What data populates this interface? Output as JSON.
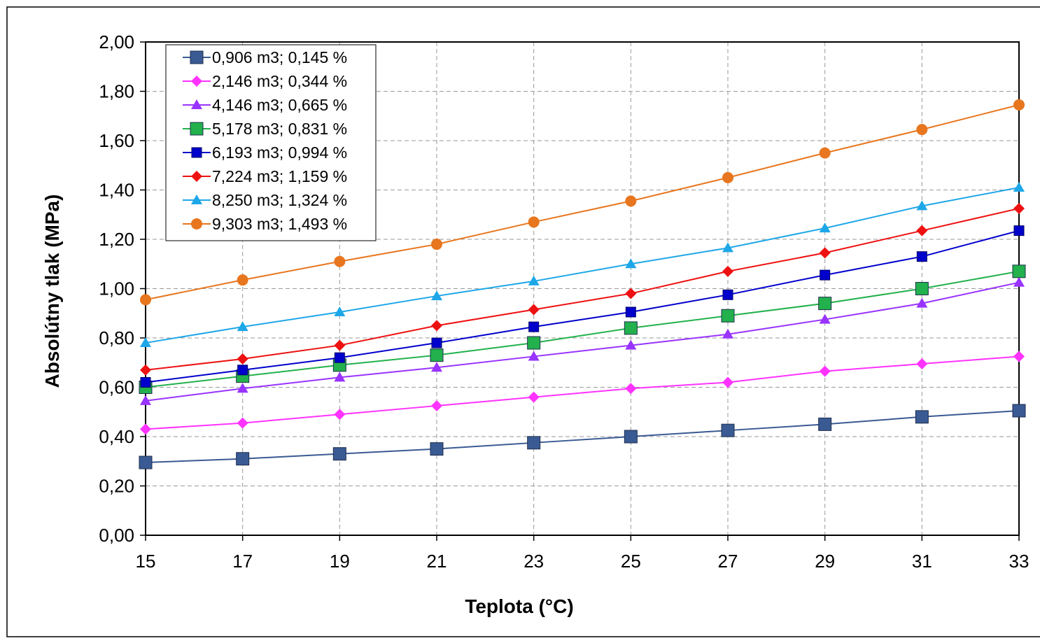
{
  "chart_data": {
    "type": "line",
    "title": "",
    "xlabel": "Teplota (°C)",
    "ylabel": "Absolútny tlak (MPa)",
    "x": [
      15,
      17,
      19,
      21,
      23,
      25,
      27,
      29,
      31,
      33
    ],
    "xlim": [
      15,
      33
    ],
    "ylim": [
      0,
      2
    ],
    "x_ticks": [
      "15",
      "17",
      "19",
      "21",
      "23",
      "25",
      "27",
      "29",
      "31",
      "33"
    ],
    "y_ticks": [
      "0,00",
      "0,20",
      "0,40",
      "0,60",
      "0,80",
      "1,00",
      "1,20",
      "1,40",
      "1,60",
      "1,80",
      "2,00"
    ],
    "grid": true,
    "legend_position": "top-left",
    "series": [
      {
        "name": "0,906 m3; 0,145 %",
        "color": "#3a5a93",
        "marker": "square-large",
        "values": [
          0.295,
          0.31,
          0.33,
          0.35,
          0.375,
          0.4,
          0.425,
          0.45,
          0.48,
          0.505
        ]
      },
      {
        "name": "2,146 m3; 0,344 %",
        "color": "#ff33ff",
        "marker": "diamond",
        "values": [
          0.43,
          0.455,
          0.49,
          0.525,
          0.56,
          0.595,
          0.62,
          0.665,
          0.695,
          0.725
        ]
      },
      {
        "name": "4,146 m3; 0,665 %",
        "color": "#9933ff",
        "marker": "triangle",
        "values": [
          0.545,
          0.595,
          0.64,
          0.68,
          0.725,
          0.77,
          0.815,
          0.875,
          0.94,
          1.025
        ]
      },
      {
        "name": "5,178 m3; 0,831 %",
        "color": "#22b14c",
        "marker": "square-large",
        "values": [
          0.6,
          0.645,
          0.69,
          0.73,
          0.78,
          0.84,
          0.89,
          0.94,
          1.0,
          1.07
        ]
      },
      {
        "name": "6,193 m3; 0,994 %",
        "color": "#0000cc",
        "marker": "square",
        "values": [
          0.62,
          0.67,
          0.72,
          0.78,
          0.845,
          0.905,
          0.975,
          1.055,
          1.13,
          1.235
        ]
      },
      {
        "name": "7,224 m3; 1,159 %",
        "color": "#ee1111",
        "marker": "diamond",
        "values": [
          0.67,
          0.715,
          0.77,
          0.85,
          0.915,
          0.98,
          1.07,
          1.145,
          1.235,
          1.325
        ]
      },
      {
        "name": "8,250 m3; 1,324 %",
        "color": "#1ea7e8",
        "marker": "triangle",
        "values": [
          0.78,
          0.845,
          0.905,
          0.97,
          1.03,
          1.1,
          1.165,
          1.245,
          1.335,
          1.41
        ]
      },
      {
        "name": "9,303 m3; 1,493 %",
        "color": "#e8761e",
        "marker": "circle",
        "values": [
          0.955,
          1.035,
          1.11,
          1.18,
          1.27,
          1.355,
          1.45,
          1.55,
          1.645,
          1.745
        ]
      }
    ]
  }
}
